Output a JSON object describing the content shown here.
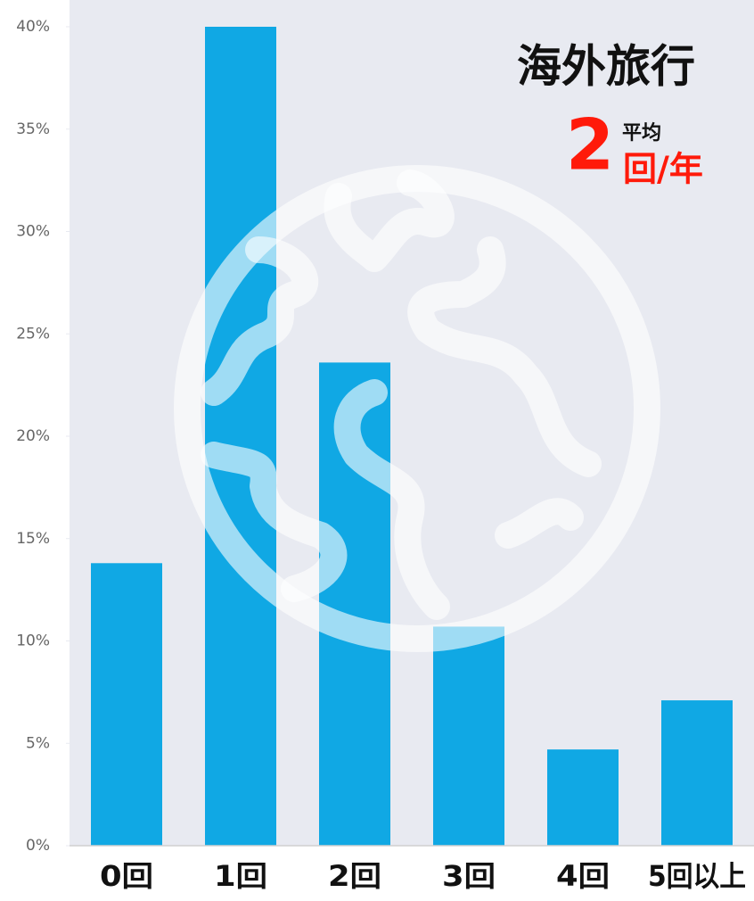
{
  "chart_data": {
    "type": "bar",
    "title": "海外旅行",
    "annotation": {
      "label": "平均",
      "value": 2,
      "unit": "回/年"
    },
    "categories": [
      "0回",
      "1回",
      "2回",
      "3回",
      "4回",
      "5回以上"
    ],
    "values": [
      13.8,
      40,
      23.6,
      10.7,
      4.7,
      7.1
    ],
    "color": "#10a8e4",
    "ylim": [
      0,
      40
    ],
    "yticks": [
      {
        "value": 0,
        "label": "0%"
      },
      {
        "value": 5,
        "label": "5%"
      },
      {
        "value": 10,
        "label": "10%"
      },
      {
        "value": 15,
        "label": "15%"
      },
      {
        "value": 20,
        "label": "20%"
      },
      {
        "value": 25,
        "label": "25%"
      },
      {
        "value": 30,
        "label": "30%"
      },
      {
        "value": 35,
        "label": "35%"
      },
      {
        "value": 40,
        "label": "40%"
      }
    ]
  }
}
